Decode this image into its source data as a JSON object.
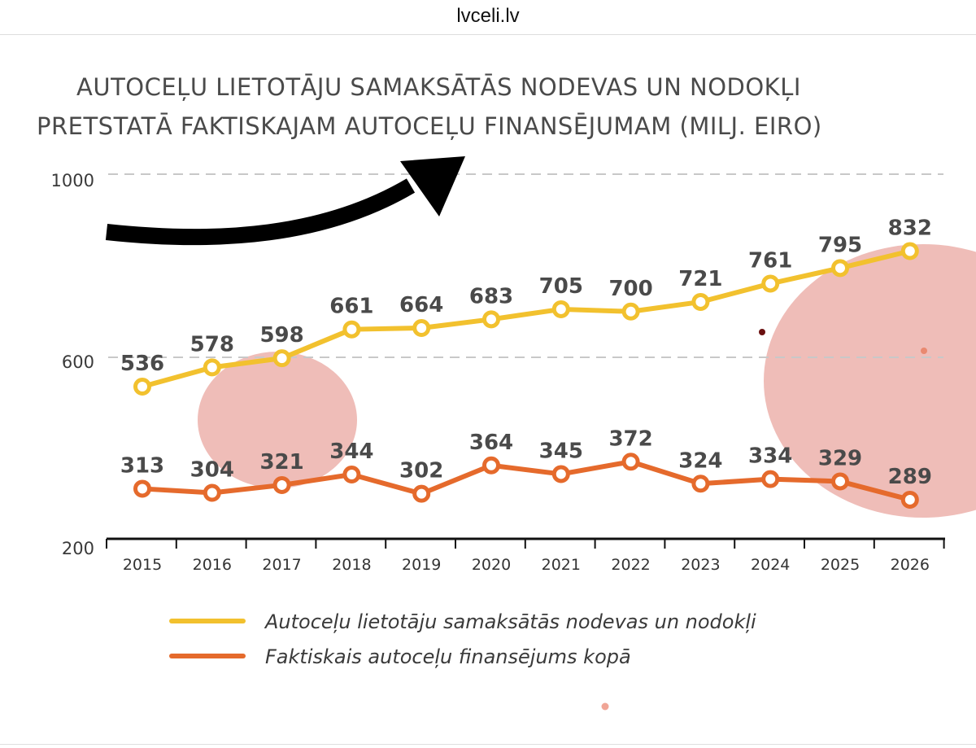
{
  "header": {
    "site": "lvceli.lv"
  },
  "colors": {
    "series_1": "#f2c12e",
    "series_2": "#e56a2c",
    "grid": "#c8c8c8",
    "axis": "#111111",
    "overlay": "#e9a49c",
    "arrow": "#000000"
  },
  "chart_data": {
    "type": "line",
    "title_lines": [
      "AUTOCEĻU LIETOTĀJU SAMAKSĀTĀS NODEVAS UN NODOKĻI",
      "PRETSTATĀ FAKTISKAJAM AUTOCEĻU FINANSĒJUMAM (MILJ. EIRO)"
    ],
    "xlabel": "",
    "ylabel": "",
    "ylim": [
      200,
      1000
    ],
    "yticks": [
      200,
      600,
      1000
    ],
    "ytick_labels": [
      "200",
      "600",
      "1000"
    ],
    "grid_values": [
      600,
      1000
    ],
    "grid": "dashed horizontal at 600 and 1000",
    "x": [
      "2015",
      "2016",
      "2017",
      "2018",
      "2019",
      "2020",
      "2021",
      "2022",
      "2023",
      "2024",
      "2025",
      "2026"
    ],
    "series": [
      {
        "name": "Autoceļu lietotāju samaksātās nodevas un nodokļi",
        "values": [
          536,
          578,
          598,
          661,
          664,
          683,
          705,
          700,
          721,
          761,
          795,
          832
        ],
        "labels": [
          "536",
          "578",
          "598",
          "661",
          "664",
          "683",
          "705",
          "700",
          "721",
          "761",
          "795",
          "832"
        ]
      },
      {
        "name": "Faktiskais autoceļu finansējums kopā",
        "values": [
          313,
          304,
          321,
          344,
          302,
          364,
          345,
          372,
          324,
          334,
          329,
          289
        ],
        "labels": [
          "313",
          "304",
          "321",
          "344",
          "302",
          "364",
          "345",
          "372",
          "324",
          "334",
          "329",
          "289"
        ]
      }
    ],
    "legend_position": "bottom-center",
    "annotations": [
      "black curved arrow pointing up-right (upper left)"
    ]
  }
}
